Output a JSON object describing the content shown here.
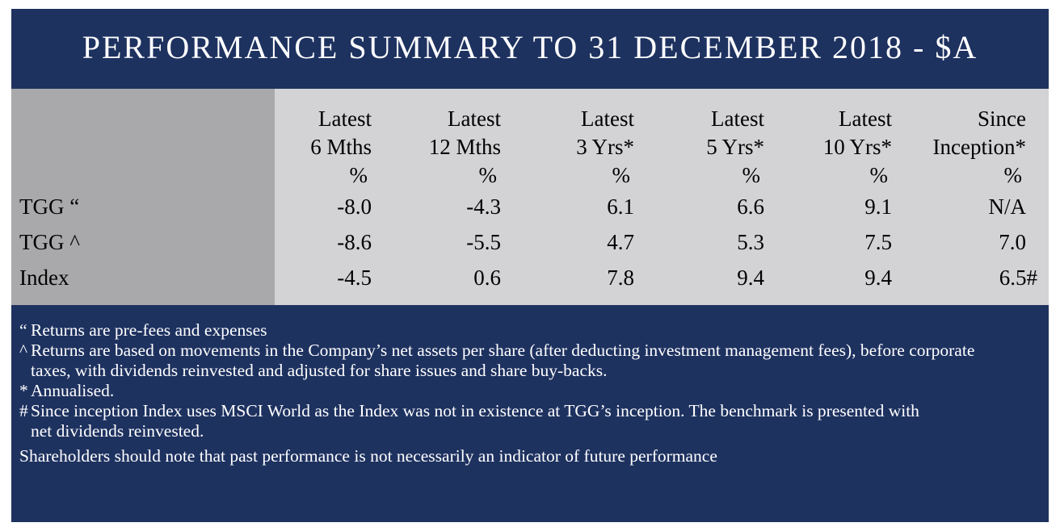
{
  "title": "Performance Summary to 31 December 2018 - $A",
  "columns": [
    {
      "line1": "Latest",
      "line2": "6 Mths",
      "unit": "%"
    },
    {
      "line1": "Latest",
      "line2": "12 Mths",
      "unit": "%"
    },
    {
      "line1": "Latest",
      "line2": "3 Yrs*",
      "unit": "%"
    },
    {
      "line1": "Latest",
      "line2": "5 Yrs*",
      "unit": "%"
    },
    {
      "line1": "Latest",
      "line2": "10 Yrs*",
      "unit": "%"
    },
    {
      "line1": "Since",
      "line2": "Inception*",
      "unit": "%"
    }
  ],
  "rows": [
    {
      "label": "TGG “",
      "values": [
        "-8.0",
        "-4.3",
        "6.1",
        "6.6",
        "9.1",
        "N/A"
      ]
    },
    {
      "label": "TGG ^",
      "values": [
        "-8.6",
        "-5.5",
        "4.7",
        "5.3",
        "7.5",
        "7.0"
      ]
    },
    {
      "label": "Index",
      "values": [
        "-4.5",
        "0.6",
        "7.8",
        "9.4",
        "9.4",
        "6.5#"
      ]
    }
  ],
  "notes": [
    {
      "marker": "“",
      "text": "Returns are pre-fees and expenses"
    },
    {
      "marker": "^",
      "text": "Returns are based on movements in the Company’s net assets per share (after deducting investment management fees), before corporate taxes, with dividends reinvested and adjusted for share issues and share buy-backs."
    },
    {
      "marker": "*",
      "text": "Annualised."
    },
    {
      "marker": "#",
      "text": "Since inception Index uses MSCI World as the Index was not in existence at TGG’s inception. The benchmark is presented with net dividends reinvested."
    }
  ],
  "disclaimer": "Shareholders should note that past performance is not necessarily an indicator of future performance",
  "colors": {
    "navy": "#1e3260",
    "table_bg": "#d3d3d5",
    "stub_bg": "#a9a9ab"
  }
}
